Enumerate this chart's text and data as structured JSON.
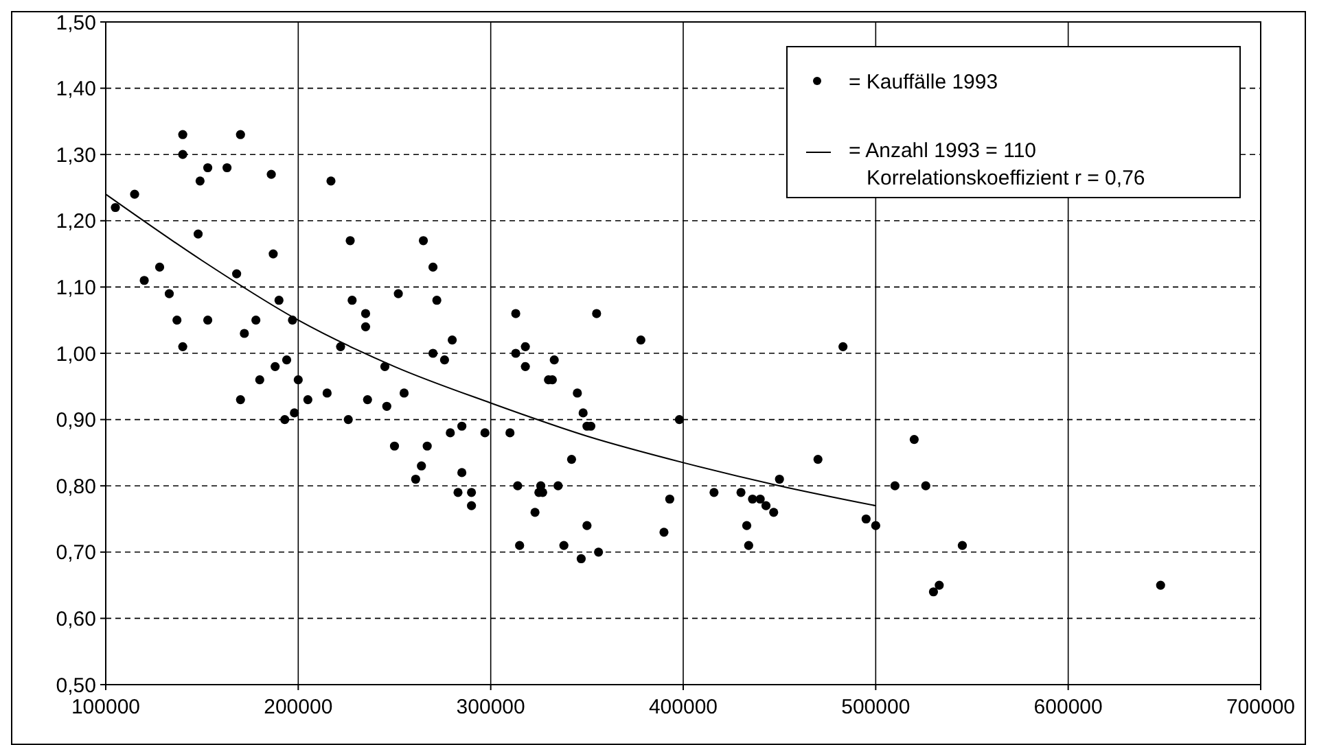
{
  "chart_data": {
    "type": "scatter",
    "xlim": [
      100000,
      700000
    ],
    "xticks": [
      100000,
      200000,
      300000,
      400000,
      500000,
      600000,
      700000
    ],
    "ylim": [
      0.5,
      1.5
    ],
    "yticks": [
      {
        "value": 0.5,
        "label": "0,50"
      },
      {
        "value": 0.6,
        "label": "0,60"
      },
      {
        "value": 0.7,
        "label": "0,70"
      },
      {
        "value": 0.8,
        "label": "0,80"
      },
      {
        "value": 0.9,
        "label": "0,90"
      },
      {
        "value": 1.0,
        "label": "1,00"
      },
      {
        "value": 1.1,
        "label": "1,10"
      },
      {
        "value": 1.2,
        "label": "1,20"
      },
      {
        "value": 1.3,
        "label": "1,30"
      },
      {
        "value": 1.4,
        "label": "1,40"
      },
      {
        "value": 1.5,
        "label": "1,50"
      }
    ],
    "grid": true,
    "legend": "top right",
    "marker": "circle",
    "annotations": [
      "Korrelationskoeffizient r = 0,76"
    ],
    "series": [
      {
        "name": "= Kauffälle 1993",
        "color": "#000000",
        "x": [
          105000,
          115000,
          120000,
          128000,
          133000,
          137000,
          140000,
          140000,
          140000,
          148000,
          149000,
          153000,
          153000,
          163000,
          168000,
          170000,
          170000,
          172000,
          178000,
          180000,
          186000,
          187000,
          188000,
          190000,
          193000,
          194000,
          197000,
          198000,
          200000,
          205000,
          215000,
          217000,
          222000,
          226000,
          227000,
          228000,
          235000,
          235000,
          236000,
          245000,
          246000,
          250000,
          252000,
          255000,
          261000,
          264000,
          265000,
          267000,
          270000,
          270000,
          272000,
          276000,
          279000,
          280000,
          283000,
          285000,
          290000,
          290000,
          285000,
          297000,
          310000,
          313000,
          314000,
          315000,
          313000,
          318000,
          318000,
          323000,
          325000,
          326000,
          327000,
          330000,
          332000,
          333000,
          335000,
          338000,
          342000,
          345000,
          347000,
          348000,
          350000,
          350000,
          352000,
          355000,
          356000,
          378000,
          390000,
          393000,
          398000,
          416000,
          430000,
          433000,
          434000,
          436000,
          440000,
          443000,
          447000,
          450000,
          470000,
          483000,
          495000,
          500000,
          510000,
          520000,
          526000,
          530000,
          533000,
          545000,
          648000
        ],
        "values": [
          1.22,
          1.24,
          1.11,
          1.13,
          1.09,
          1.05,
          1.01,
          1.3,
          1.33,
          1.18,
          1.26,
          1.28,
          1.05,
          1.28,
          1.12,
          0.93,
          1.33,
          1.03,
          1.05,
          0.96,
          1.27,
          1.15,
          0.98,
          1.08,
          0.9,
          0.99,
          1.05,
          0.91,
          0.96,
          0.93,
          0.94,
          1.26,
          1.01,
          0.9,
          1.17,
          1.08,
          1.06,
          1.04,
          0.93,
          0.98,
          0.92,
          0.86,
          1.09,
          0.94,
          0.81,
          0.83,
          1.17,
          0.86,
          1.13,
          1.0,
          1.08,
          0.99,
          0.88,
          1.02,
          0.79,
          0.82,
          0.79,
          0.77,
          0.89,
          0.88,
          0.88,
          1.06,
          0.8,
          0.71,
          1.0,
          1.01,
          0.98,
          0.76,
          0.79,
          0.8,
          0.79,
          0.96,
          0.96,
          0.99,
          0.8,
          0.71,
          0.84,
          0.94,
          0.69,
          0.91,
          0.89,
          0.74,
          0.89,
          1.06,
          0.7,
          1.02,
          0.73,
          0.78,
          0.9,
          0.79,
          0.79,
          0.74,
          0.71,
          0.78,
          0.78,
          0.77,
          0.76,
          0.81,
          0.84,
          1.01,
          0.75,
          0.74,
          0.8,
          0.87,
          0.8,
          0.64,
          0.65,
          0.71,
          0.65
        ]
      },
      {
        "name": "= Anzahl 1993 = 110",
        "type": "line",
        "color": "#000000",
        "marker": "none",
        "x": [
          100000,
          150000,
          200000,
          250000,
          300000,
          350000,
          400000,
          450000,
          500000
        ],
        "values": [
          1.24,
          1.14,
          1.05,
          0.98,
          0.925,
          0.875,
          0.835,
          0.8,
          0.77
        ]
      }
    ]
  }
}
